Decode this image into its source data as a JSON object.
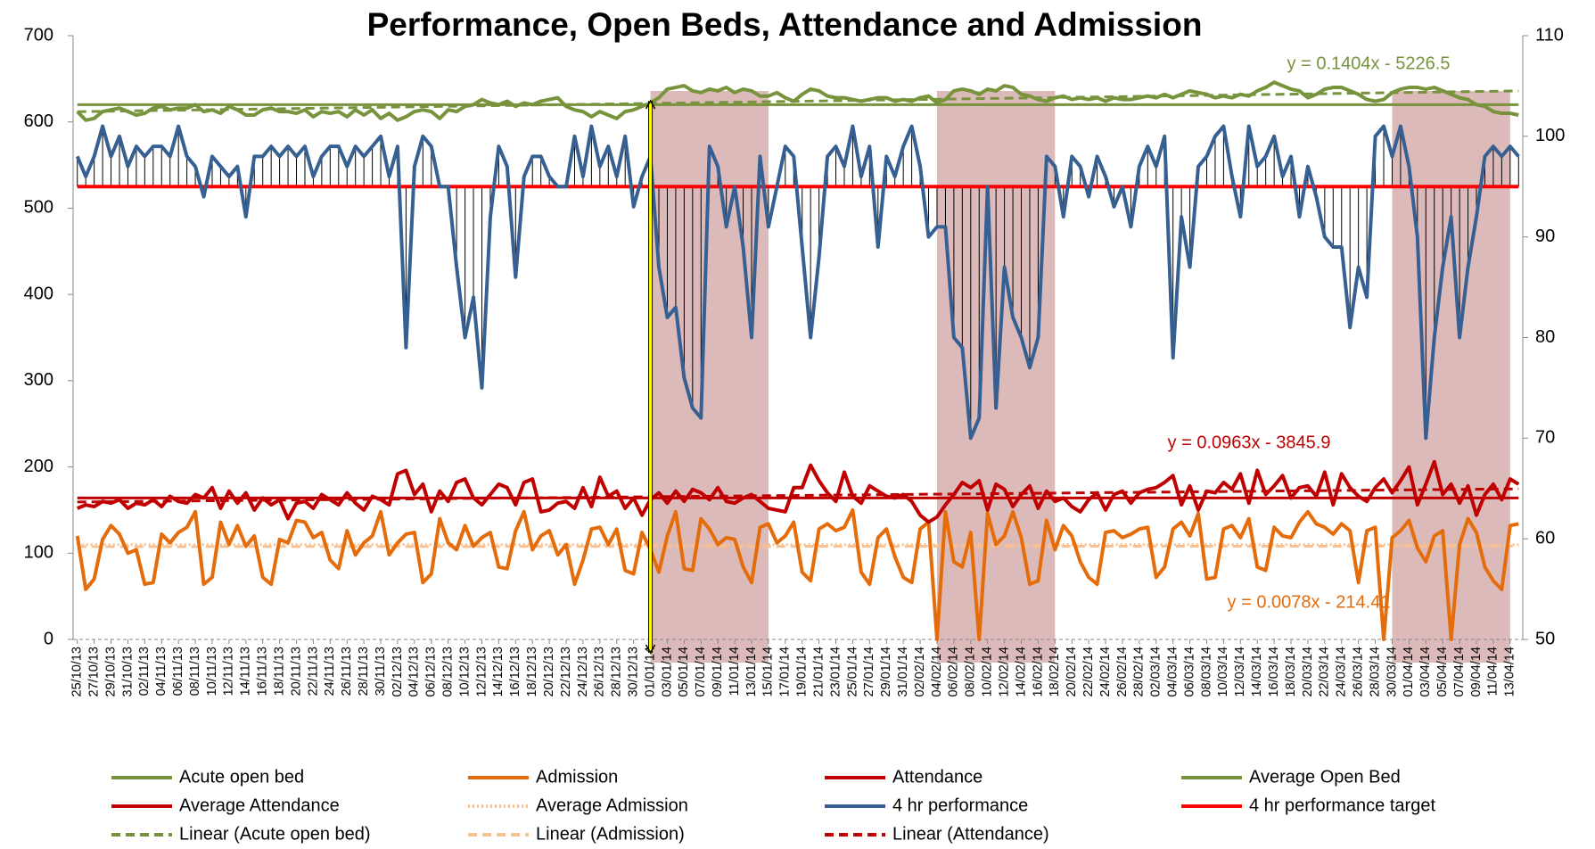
{
  "chart_data": {
    "type": "line",
    "title": "Performance, Open Beds, Attendance and Admission",
    "categories": [
      "25/10/13",
      null,
      "27/10/13",
      null,
      "29/10/13",
      null,
      "31/10/13",
      null,
      "02/11/13",
      null,
      "04/11/13",
      null,
      "06/11/13",
      null,
      "08/11/13",
      null,
      "10/11/13",
      null,
      "12/11/13",
      null,
      "14/11/13",
      null,
      "16/11/13",
      null,
      "18/11/13",
      null,
      "20/11/13",
      null,
      "22/11/13",
      null,
      "24/11/13",
      null,
      "26/11/13",
      null,
      "28/11/13",
      null,
      "30/11/13",
      null,
      "02/12/13",
      null,
      "04/12/13",
      null,
      "06/12/13",
      null,
      "08/12/13",
      null,
      "10/12/13",
      null,
      "12/12/13",
      null,
      "14/12/13",
      null,
      "16/12/13",
      null,
      "18/12/13",
      null,
      "20/12/13",
      null,
      "22/12/13",
      null,
      "24/12/13",
      null,
      "26/12/13",
      null,
      "28/12/13",
      null,
      "30/12/13",
      null,
      "01/01/14",
      null,
      "03/01/14",
      null,
      "05/01/14",
      null,
      "07/01/14",
      null,
      "09/01/14",
      null,
      "11/01/14",
      null,
      "13/01/14",
      null,
      "15/01/14",
      null,
      "17/01/14",
      null,
      "19/01/14",
      null,
      "21/01/14",
      null,
      "23/01/14",
      null,
      "25/01/14",
      null,
      "27/01/14",
      null,
      "29/01/14",
      null,
      "31/01/14",
      null,
      "02/02/14",
      null,
      "04/02/14",
      null,
      "06/02/14",
      null,
      "08/02/14",
      null,
      "10/02/14",
      null,
      "12/02/14",
      null,
      "14/02/14",
      null,
      "16/02/14",
      null,
      "18/02/14",
      null,
      "20/02/14",
      null,
      "22/02/14",
      null,
      "24/02/14",
      null,
      "26/02/14",
      null,
      "28/02/14",
      null,
      "02/03/14",
      null,
      "04/03/14",
      null,
      "06/03/14",
      null,
      "08/03/14",
      null,
      "10/03/14",
      null,
      "12/03/14",
      null,
      "14/03/14",
      null,
      "16/03/14",
      null,
      "18/03/14",
      null,
      "20/03/14",
      null,
      "22/03/14",
      null,
      "24/03/14",
      null,
      "26/03/14",
      null,
      "28/03/14",
      null,
      "30/03/14",
      null,
      "01/04/14",
      null,
      "03/04/14",
      null,
      "05/04/14",
      null,
      "07/04/14",
      null,
      "09/04/14",
      null,
      "11/04/14",
      null,
      "13/04/14",
      null
    ],
    "series": [
      {
        "name": "Acute open bed",
        "color": "#77933c",
        "axis": "y",
        "values": [
          612,
          602,
          604,
          612,
          614,
          616,
          612,
          608,
          610,
          616,
          618,
          614,
          616,
          616,
          620,
          612,
          614,
          610,
          618,
          614,
          608,
          608,
          614,
          616,
          612,
          612,
          610,
          614,
          606,
          612,
          610,
          612,
          606,
          614,
          608,
          614,
          604,
          610,
          602,
          606,
          612,
          614,
          612,
          604,
          614,
          612,
          618,
          620,
          626,
          622,
          620,
          624,
          618,
          622,
          620,
          624,
          626,
          628,
          618,
          614,
          612,
          606,
          612,
          608,
          604,
          612,
          614,
          618,
          622,
          628,
          638,
          640,
          642,
          636,
          634,
          638,
          636,
          640,
          634,
          638,
          636,
          630,
          630,
          634,
          628,
          624,
          632,
          638,
          636,
          630,
          628,
          628,
          626,
          624,
          626,
          628,
          628,
          624,
          626,
          624,
          628,
          630,
          622,
          626,
          636,
          638,
          636,
          632,
          638,
          636,
          642,
          640,
          632,
          630,
          626,
          624,
          628,
          630,
          626,
          628,
          626,
          628,
          624,
          628,
          626,
          626,
          628,
          630,
          628,
          632,
          628,
          632,
          636,
          634,
          632,
          628,
          630,
          628,
          632,
          630,
          636,
          640,
          646,
          642,
          638,
          636,
          628,
          632,
          638,
          640,
          640,
          636,
          632,
          626,
          624,
          626,
          634,
          638,
          640,
          640,
          638,
          640,
          636,
          632,
          628,
          626,
          620,
          618,
          612,
          610,
          610,
          608
        ],
        "trendline": {
          "name": "Linear (Acute open bed)",
          "color": "#77933c",
          "line_style": "dashed",
          "equation": "y = 0.1404x - 5226.5"
        }
      },
      {
        "name": "Admission",
        "color": "#e46c0a",
        "axis": "y",
        "values": [
          120,
          58,
          70,
          116,
          132,
          122,
          100,
          104,
          64,
          66,
          122,
          112,
          124,
          130,
          148,
          64,
          72,
          136,
          110,
          132,
          108,
          120,
          72,
          64,
          116,
          112,
          138,
          136,
          118,
          124,
          92,
          82,
          126,
          98,
          112,
          120,
          148,
          98,
          112,
          122,
          124,
          66,
          76,
          140,
          112,
          104,
          132,
          108,
          118,
          124,
          84,
          82,
          126,
          148,
          104,
          120,
          126,
          98,
          110,
          64,
          92,
          128,
          130,
          110,
          128,
          80,
          76,
          124,
          104,
          78,
          120,
          148,
          82,
          80,
          140,
          128,
          110,
          118,
          116,
          84,
          66,
          130,
          134,
          112,
          120,
          136,
          78,
          68,
          128,
          134,
          126,
          130,
          150,
          78,
          64,
          118,
          128,
          96,
          72,
          66,
          128,
          136,
          0,
          148,
          90,
          84,
          124,
          0,
          146,
          110,
          120,
          148,
          118,
          64,
          68,
          138,
          104,
          132,
          120,
          90,
          72,
          64,
          124,
          126,
          118,
          122,
          128,
          130,
          72,
          84,
          128,
          136,
          120,
          146,
          70,
          72,
          128,
          132,
          118,
          140,
          84,
          80,
          130,
          120,
          118,
          136,
          148,
          134,
          130,
          122,
          134,
          126,
          66,
          126,
          130,
          0,
          118,
          126,
          138,
          106,
          90,
          120,
          126,
          0,
          110,
          140,
          124,
          84,
          68,
          58,
          132,
          134
        ],
        "trendline": {
          "name": "Linear (Admission)",
          "color": "#fac090",
          "line_style": "dashed",
          "equation": "y = 0.0078x - 214.41"
        }
      },
      {
        "name": "Attendance",
        "color": "#c00000",
        "axis": "y",
        "values": [
          152,
          156,
          154,
          160,
          158,
          162,
          152,
          158,
          156,
          162,
          154,
          166,
          160,
          158,
          168,
          164,
          176,
          152,
          172,
          158,
          170,
          150,
          164,
          156,
          162,
          140,
          158,
          160,
          152,
          168,
          162,
          156,
          170,
          158,
          150,
          166,
          162,
          156,
          192,
          196,
          168,
          180,
          148,
          172,
          160,
          182,
          186,
          164,
          156,
          168,
          180,
          176,
          156,
          182,
          186,
          148,
          150,
          158,
          160,
          152,
          176,
          154,
          188,
          166,
          172,
          152,
          164,
          144,
          162,
          170,
          158,
          172,
          160,
          174,
          170,
          162,
          176,
          160,
          158,
          164,
          168,
          160,
          152,
          150,
          148,
          176,
          176,
          202,
          184,
          170,
          160,
          194,
          166,
          158,
          178,
          172,
          166,
          164,
          168,
          160,
          144,
          136,
          142,
          156,
          168,
          182,
          176,
          184,
          150,
          180,
          174,
          154,
          168,
          178,
          152,
          172,
          160,
          164,
          154,
          148,
          162,
          170,
          150,
          168,
          172,
          158,
          170,
          174,
          176,
          182,
          190,
          156,
          178,
          150,
          172,
          170,
          182,
          174,
          192,
          158,
          196,
          168,
          178,
          190,
          164,
          176,
          178,
          166,
          194,
          156,
          192,
          176,
          166,
          160,
          176,
          186,
          170,
          184,
          200,
          156,
          180,
          206,
          168,
          180,
          158,
          178,
          144,
          168,
          180,
          162,
          186,
          180
        ],
        "trendline": {
          "name": "Linear (Attendance)",
          "color": "#c00000",
          "line_style": "dashed",
          "equation": "y = 0.0963x - 3845.9"
        }
      },
      {
        "name": "4 hr performance",
        "color": "#376092",
        "axis": "y2",
        "values": [
          98,
          96,
          98,
          101,
          98,
          100,
          97,
          99,
          98,
          99,
          99,
          98,
          101,
          98,
          97,
          94,
          98,
          97,
          96,
          97,
          92,
          98,
          98,
          99,
          98,
          99,
          98,
          99,
          96,
          98,
          99,
          99,
          97,
          99,
          98,
          99,
          100,
          96,
          99,
          79,
          97,
          100,
          99,
          95,
          95,
          87,
          80,
          84,
          75,
          92,
          99,
          97,
          86,
          96,
          98,
          98,
          96,
          95,
          95,
          100,
          96,
          101,
          97,
          99,
          96,
          100,
          93,
          96,
          98,
          87,
          82,
          83,
          76,
          73,
          72,
          99,
          97,
          91,
          95,
          89,
          80,
          98,
          91,
          95,
          99,
          98,
          89,
          80,
          88,
          98,
          99,
          97,
          101,
          96,
          99,
          89,
          98,
          96,
          99,
          101,
          97,
          90,
          91,
          91,
          80,
          79,
          70,
          72,
          95,
          73,
          87,
          82,
          80,
          77,
          80,
          98,
          97,
          92,
          98,
          97,
          94,
          98,
          96,
          93,
          95,
          91,
          97,
          99,
          97,
          100,
          78,
          92,
          87,
          97,
          98,
          100,
          101,
          96,
          92,
          101,
          97,
          98,
          100,
          96,
          98,
          92,
          97,
          94,
          90,
          89,
          89,
          81,
          87,
          84,
          100,
          101,
          98,
          101,
          97,
          90,
          70,
          80,
          87,
          92,
          80,
          87,
          92,
          98,
          99,
          98,
          99,
          98
        ]
      }
    ],
    "reference_lines": [
      {
        "name": "Average Open Bed",
        "color": "#77933c",
        "axis": "y",
        "value": 620,
        "line_style": "solid"
      },
      {
        "name": "Average Attendance",
        "color": "#c00000",
        "axis": "y",
        "value": 164,
        "line_style": "solid"
      },
      {
        "name": "Average Admission",
        "color": "#fac090",
        "axis": "y",
        "value": 110,
        "line_style": "dotted"
      },
      {
        "name": "4 hr performance target",
        "color": "#ff0000",
        "axis": "y2",
        "value": 95,
        "line_style": "solid"
      }
    ],
    "shaded_ranges": [
      [
        "01/01/14",
        "15/01/14"
      ],
      [
        "04/02/14",
        "18/02/14"
      ],
      [
        "30/03/14",
        "13/04/14"
      ]
    ],
    "marker_line": "01/01/14",
    "ylim": [
      0,
      700
    ],
    "yticks": [
      0,
      100,
      200,
      300,
      400,
      500,
      600,
      700
    ],
    "y2lim": [
      50,
      110
    ],
    "y2ticks": [
      50,
      60,
      70,
      80,
      90,
      100,
      110
    ],
    "grid": false
  }
}
